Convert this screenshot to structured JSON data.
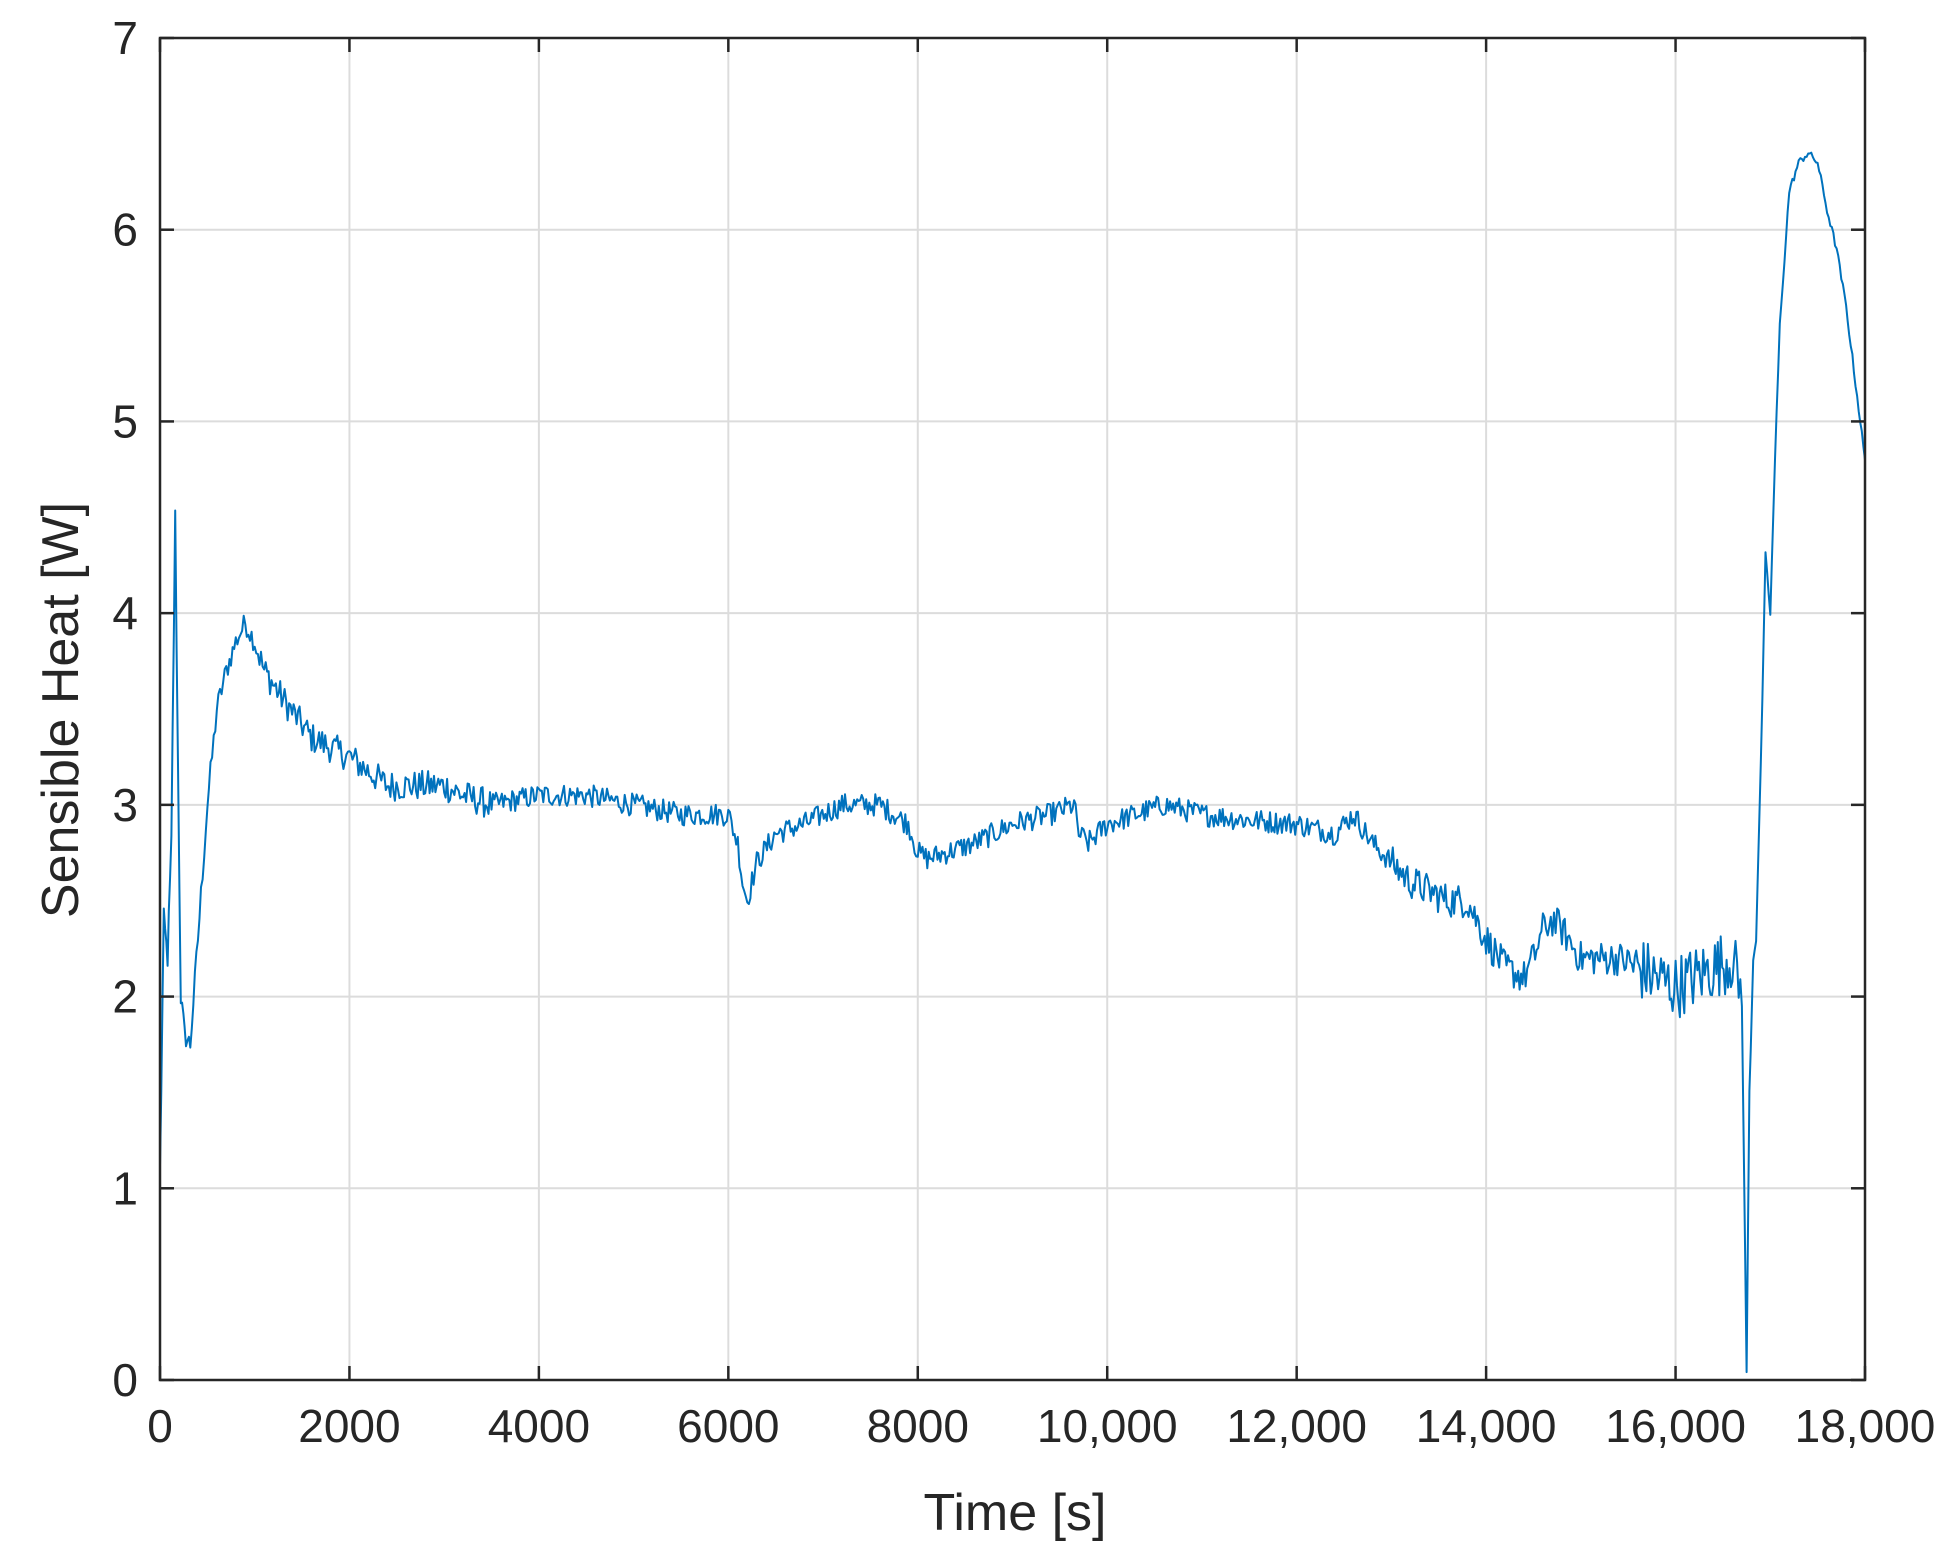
{
  "chart_data": {
    "type": "line",
    "title": "",
    "xlabel": "Time [s]",
    "ylabel": "Sensible Heat [W]",
    "xlim": [
      0,
      18000
    ],
    "ylim": [
      0,
      7
    ],
    "grid": true,
    "xticks": [
      0,
      2000,
      4000,
      6000,
      8000,
      10000,
      12000,
      14000,
      16000,
      18000
    ],
    "xtick_labels": [
      "0",
      "2000",
      "4000",
      "6000",
      "8000",
      "10,000",
      "12,000",
      "14,000",
      "16,000",
      "18,000"
    ],
    "yticks": [
      0,
      1,
      2,
      3,
      4,
      5,
      6,
      7
    ],
    "ytick_labels": [
      "0",
      "1",
      "2",
      "3",
      "4",
      "5",
      "6",
      "7"
    ],
    "series": [
      {
        "color": "#0072BD",
        "x": [
          0,
          40,
          80,
          120,
          160,
          190,
          220,
          260,
          320,
          400,
          500,
          600,
          700,
          800,
          900,
          1000,
          1100,
          1300,
          1600,
          2000,
          2400,
          2800,
          3000,
          3200,
          3500,
          4000,
          4500,
          5000,
          5500,
          5900,
          6000,
          6100,
          6150,
          6200,
          6300,
          6500,
          6800,
          7200,
          7600,
          7900,
          8000,
          8100,
          8300,
          8600,
          9000,
          9400,
          9650,
          9700,
          9800,
          10000,
          10300,
          10600,
          11000,
          11500,
          12000,
          12400,
          12600,
          12800,
          13000,
          13200,
          13400,
          13600,
          13800,
          14000,
          14200,
          14400,
          14500,
          14600,
          14700,
          14800,
          15000,
          15200,
          15400,
          15600,
          15800,
          16000,
          16200,
          16400,
          16600,
          16700,
          16750,
          16780,
          16820,
          16850,
          16900,
          16950,
          17000,
          17050,
          17100,
          17200,
          17300,
          17400,
          17500,
          17600,
          17700,
          17800,
          17900,
          18000
        ],
        "y": [
          1.1,
          2.4,
          2.2,
          2.8,
          4.5,
          3.2,
          2.0,
          1.8,
          1.75,
          2.3,
          3.0,
          3.5,
          3.7,
          3.85,
          3.95,
          3.85,
          3.7,
          3.55,
          3.35,
          3.25,
          3.1,
          3.1,
          3.1,
          3.05,
          3.0,
          3.05,
          3.05,
          3.0,
          2.95,
          2.95,
          2.95,
          2.8,
          2.6,
          2.5,
          2.7,
          2.85,
          2.9,
          3.0,
          3.0,
          2.9,
          2.75,
          2.72,
          2.75,
          2.8,
          2.9,
          2.95,
          3.0,
          2.85,
          2.8,
          2.9,
          2.95,
          3.0,
          2.95,
          2.92,
          2.9,
          2.85,
          2.95,
          2.8,
          2.7,
          2.6,
          2.55,
          2.5,
          2.5,
          2.3,
          2.15,
          2.1,
          2.2,
          2.35,
          2.4,
          2.35,
          2.2,
          2.2,
          2.2,
          2.15,
          2.1,
          2.05,
          2.1,
          2.15,
          2.2,
          2.0,
          0.05,
          1.5,
          2.2,
          2.3,
          3.2,
          4.3,
          4.0,
          4.8,
          5.5,
          6.2,
          6.35,
          6.4,
          6.35,
          6.1,
          5.9,
          5.6,
          5.2,
          4.8
        ]
      }
    ]
  }
}
